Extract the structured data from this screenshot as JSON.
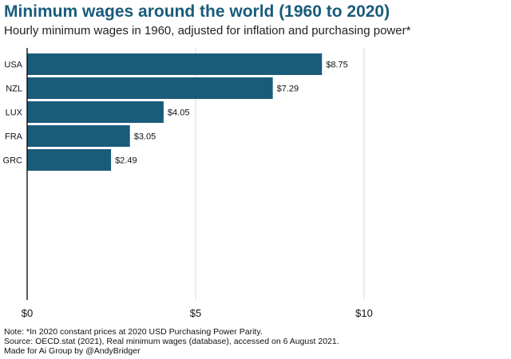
{
  "colors": {
    "bar": "#1a5b7a",
    "title": "#1a5b7a",
    "grid": "#d9d9d9",
    "axis": "#000000"
  },
  "chart_data": {
    "type": "bar",
    "orientation": "horizontal",
    "title": "Minimum wages around the world (1960 to 2020)",
    "subtitle": "Hourly minimum wages in 1960, adjusted for inflation and purchasing power*",
    "categories": [
      "USA",
      "NZL",
      "LUX",
      "FRA",
      "GRC"
    ],
    "values": [
      8.75,
      7.29,
      4.05,
      3.05,
      2.49
    ],
    "value_labels": [
      "$8.75",
      "$7.29",
      "$4.05",
      "$3.05",
      "$2.49"
    ],
    "xlim": [
      0,
      10
    ],
    "xticks": [
      0,
      5,
      10
    ],
    "xtick_labels": [
      "$0",
      "$5",
      "$10"
    ],
    "xlabel": "",
    "ylabel": "",
    "grid": true,
    "legend": "none"
  },
  "footnotes": {
    "note": "Note: *In 2020 constant prices at 2020 USD Purchasing Power Parity.",
    "source": "Source: OECD.stat (2021), Real minimum wages (database), accessed on 6 August 2021.",
    "credit": "Made for Ai Group by @AndyBridger"
  }
}
